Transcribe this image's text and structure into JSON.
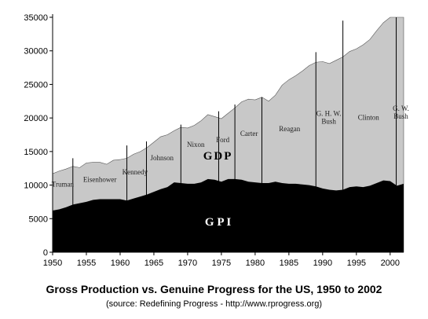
{
  "chart_data": {
    "type": "area",
    "title": "Gross Production vs. Genuine Progress for the US, 1950 to 2002",
    "subtitle": "(source: Redefining Progress -  http://www.rprogress.org)",
    "xlim": [
      1950,
      2002
    ],
    "ylim": [
      0,
      35000
    ],
    "x_ticks": [
      "1950",
      "1955",
      "1960",
      "1965",
      "1970",
      "1975",
      "1980",
      "1985",
      "1990",
      "1995",
      "2000"
    ],
    "y_ticks": [
      "0",
      "5000",
      "10000",
      "15000",
      "20000",
      "25000",
      "30000",
      "35000"
    ],
    "grid": false,
    "series": [
      {
        "name": "GDP",
        "color": "#c8c8c8",
        "x": [
          1950,
          1951,
          1952,
          1953,
          1954,
          1955,
          1956,
          1957,
          1958,
          1959,
          1960,
          1961,
          1962,
          1963,
          1964,
          1965,
          1966,
          1967,
          1968,
          1969,
          1970,
          1971,
          1972,
          1973,
          1974,
          1975,
          1976,
          1977,
          1978,
          1979,
          1980,
          1981,
          1982,
          1983,
          1984,
          1985,
          1986,
          1987,
          1988,
          1989,
          1990,
          1991,
          1992,
          1993,
          1994,
          1995,
          1996,
          1997,
          1998,
          1999,
          2000,
          2001,
          2002
        ],
        "values": [
          11700,
          12100,
          12400,
          12800,
          12600,
          13300,
          13400,
          13400,
          13100,
          13700,
          13800,
          14000,
          14600,
          15000,
          15600,
          16400,
          17200,
          17500,
          18100,
          18600,
          18500,
          18900,
          19600,
          20500,
          20200,
          19900,
          20700,
          21500,
          22400,
          22800,
          22700,
          23100,
          22500,
          23400,
          24900,
          25700,
          26300,
          27000,
          27800,
          28300,
          28400,
          28100,
          28600,
          29100,
          29900,
          30300,
          30900,
          31700,
          33000,
          34200,
          35000,
          35000,
          35000
        ]
      },
      {
        "name": "GPI",
        "color": "#000000",
        "x": [
          1950,
          1951,
          1952,
          1953,
          1954,
          1955,
          1956,
          1957,
          1958,
          1959,
          1960,
          1961,
          1962,
          1963,
          1964,
          1965,
          1966,
          1967,
          1968,
          1969,
          1970,
          1971,
          1972,
          1973,
          1974,
          1975,
          1976,
          1977,
          1978,
          1979,
          1980,
          1981,
          1982,
          1983,
          1984,
          1985,
          1986,
          1987,
          1988,
          1989,
          1990,
          1991,
          1992,
          1993,
          1994,
          1995,
          1996,
          1997,
          1998,
          1999,
          2000,
          2001,
          2002
        ],
        "values": [
          6200,
          6400,
          6700,
          7100,
          7300,
          7500,
          7800,
          7900,
          7900,
          7900,
          7900,
          7700,
          8000,
          8300,
          8600,
          9000,
          9400,
          9700,
          10400,
          10300,
          10200,
          10200,
          10400,
          10900,
          10800,
          10500,
          10900,
          10900,
          10800,
          10500,
          10400,
          10300,
          10300,
          10500,
          10300,
          10200,
          10200,
          10100,
          10000,
          9800,
          9500,
          9300,
          9200,
          9300,
          9700,
          9800,
          9700,
          9900,
          10300,
          10700,
          10600,
          9900,
          10200
        ]
      }
    ],
    "band_labels": {
      "gdp": "GDP",
      "gpi": "G P I"
    },
    "presidents": [
      {
        "name": "Truman",
        "lines": [
          "Truman"
        ],
        "label_x": 1951.5,
        "label_y": 9800
      },
      {
        "name": "Eisenhower",
        "lines": [
          "Eisenhower"
        ],
        "label_x": 1957,
        "label_y": 10500
      },
      {
        "name": "Kennedy",
        "lines": [
          "Kennedy"
        ],
        "label_x": 1962.2,
        "label_y": 11600
      },
      {
        "name": "Johnson",
        "lines": [
          "Johnson"
        ],
        "label_x": 1966.2,
        "label_y": 13700
      },
      {
        "name": "Nixon",
        "lines": [
          "Nixon"
        ],
        "label_x": 1971.2,
        "label_y": 15700
      },
      {
        "name": "Ford",
        "lines": [
          "Ford"
        ],
        "label_x": 1975.2,
        "label_y": 16400
      },
      {
        "name": "Carter",
        "lines": [
          "Carter"
        ],
        "label_x": 1979.1,
        "label_y": 17300
      },
      {
        "name": "Reagan",
        "lines": [
          "Reagan"
        ],
        "label_x": 1985.1,
        "label_y": 18000
      },
      {
        "name": "G. H. W. Bush",
        "lines": [
          "G. H. W.",
          "Bush"
        ],
        "label_x": 1990.9,
        "label_y": 19700
      },
      {
        "name": "Clinton",
        "lines": [
          "Clinton"
        ],
        "label_x": 1996.8,
        "label_y": 19700
      },
      {
        "name": "G. W. Bush",
        "lines": [
          "G. W.",
          "Bush"
        ],
        "label_x": 2001.6,
        "label_y": 20500
      }
    ],
    "term_boundaries": [
      {
        "x": 1953,
        "top": 14000
      },
      {
        "x": 1961,
        "top": 15900
      },
      {
        "x": 1963.9,
        "top": 16500
      },
      {
        "x": 1969,
        "top": 19000
      },
      {
        "x": 1974.6,
        "top": 21000
      },
      {
        "x": 1977,
        "top": 22000
      },
      {
        "x": 1981,
        "top": 23100
      },
      {
        "x": 1989,
        "top": 29800
      },
      {
        "x": 1993,
        "top": 34500
      },
      {
        "x": 2000.9,
        "top": 35000
      }
    ]
  }
}
